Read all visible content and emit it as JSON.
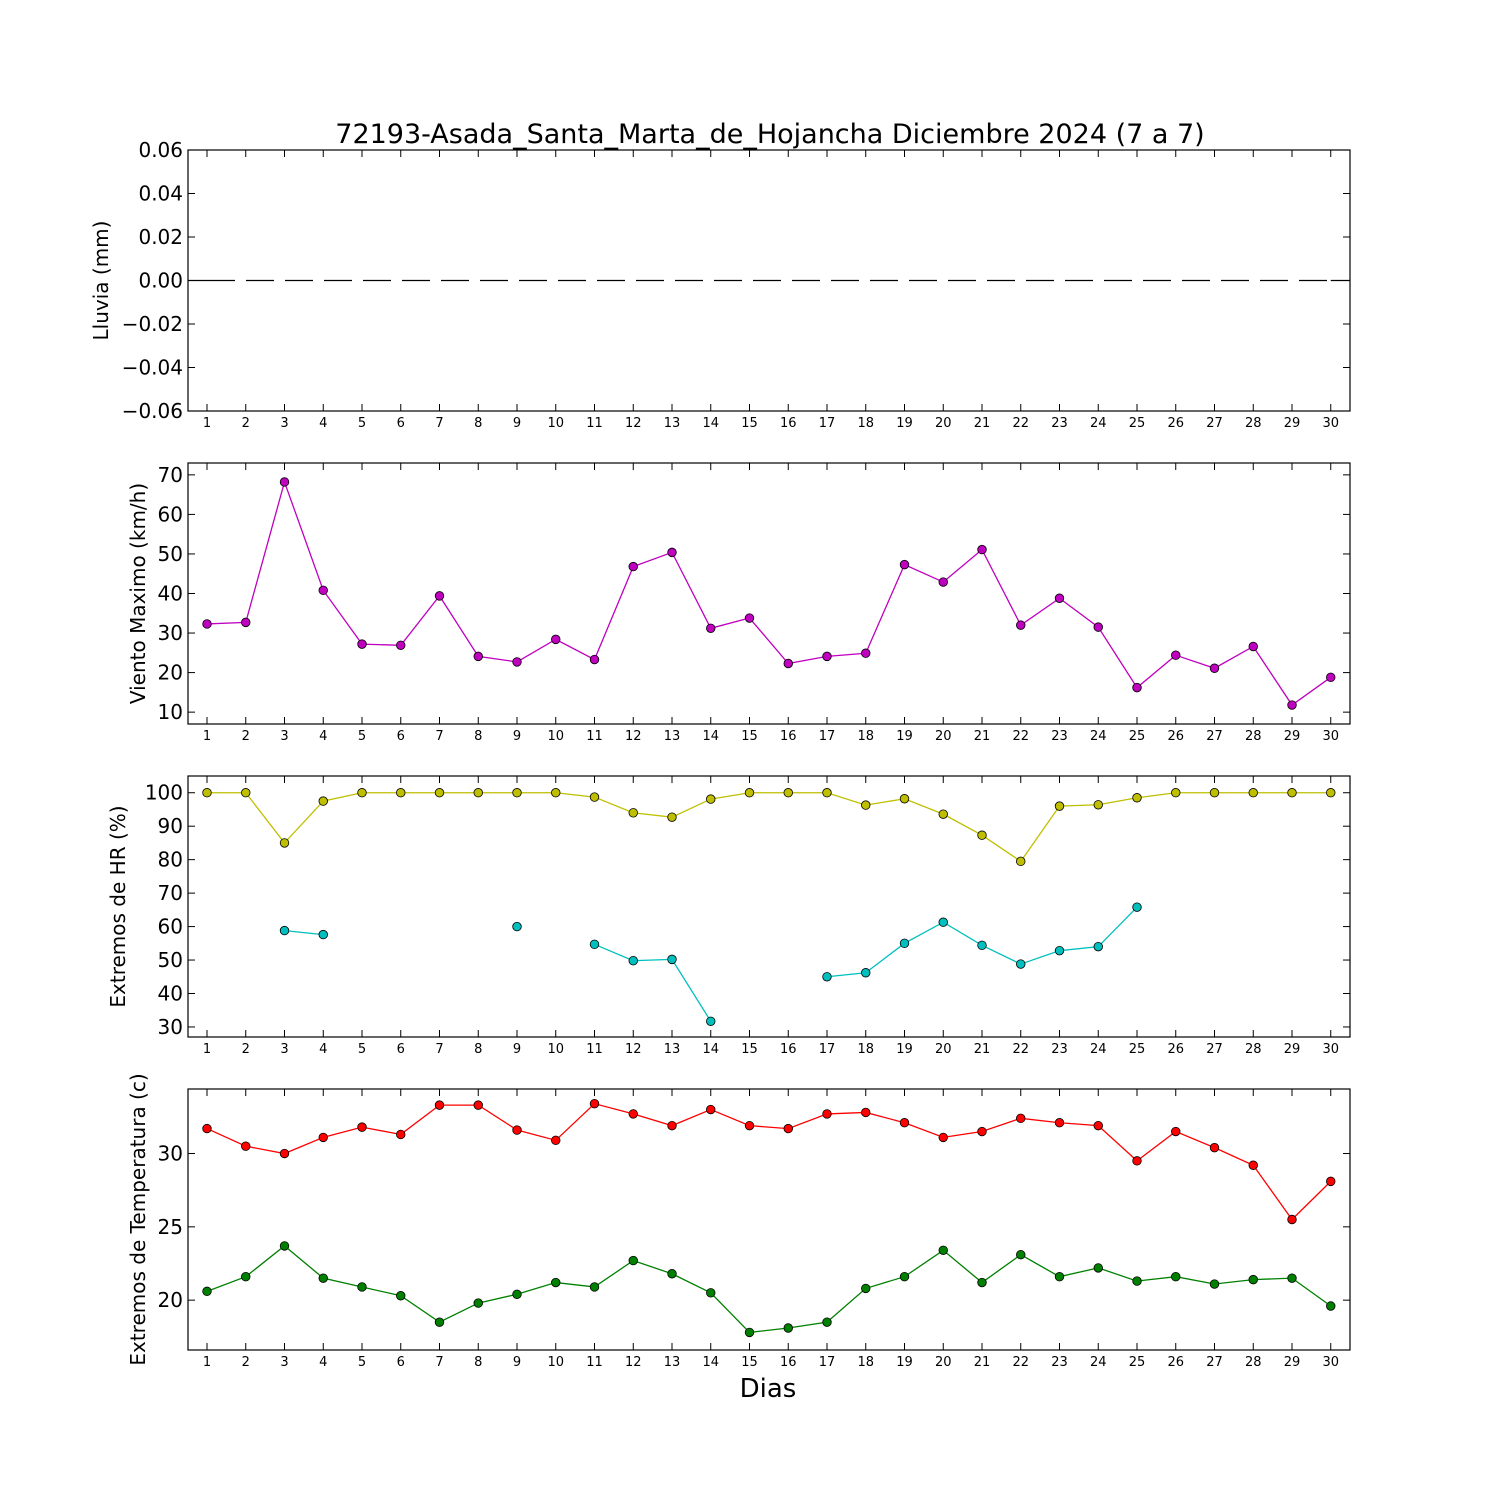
{
  "chart_data": {
    "title": "72193-Asada_Santa_Marta_de_Hojancha Diciembre 2024  (7 a 7)",
    "xlabel": "Dias",
    "days": [
      1,
      2,
      3,
      4,
      5,
      6,
      7,
      8,
      9,
      10,
      11,
      12,
      13,
      14,
      15,
      16,
      17,
      18,
      19,
      20,
      21,
      22,
      23,
      24,
      25,
      26,
      27,
      28,
      29,
      30
    ],
    "panels": [
      {
        "type": "line",
        "ylabel": "Lluvia (mm)",
        "ylim": [
          -0.06,
          0.06
        ],
        "yticks": [
          0.06,
          0.04,
          0.02,
          0.0,
          -0.02,
          -0.04,
          -0.06
        ],
        "ytick_labels": [
          "0.06",
          "0.04",
          "0.02",
          "0.00",
          "−0.02",
          "−0.04",
          "−0.06"
        ],
        "series": [
          {
            "color": "#000000",
            "style": "dashed",
            "markers": false,
            "values": [
              0,
              0,
              0,
              0,
              0,
              0,
              0,
              0,
              0,
              0,
              0,
              0,
              0,
              0,
              0,
              0,
              0,
              0,
              0,
              0,
              0,
              0,
              0,
              0,
              0,
              0,
              0,
              0,
              0,
              0
            ]
          }
        ]
      },
      {
        "type": "line",
        "ylabel": "Viento Maximo (km/h)",
        "ylim": [
          7,
          73
        ],
        "yticks": [
          70,
          60,
          50,
          40,
          30,
          20,
          10
        ],
        "ytick_labels": [
          "70",
          "60",
          "50",
          "40",
          "30",
          "20",
          "10"
        ],
        "series": [
          {
            "color": "#bf00bf",
            "style": "solid",
            "markers": true,
            "values": [
              32.3,
              32.7,
              68.2,
              40.8,
              27.2,
              26.9,
              39.4,
              24.1,
              22.7,
              28.4,
              23.3,
              46.8,
              50.4,
              31.2,
              33.8,
              22.3,
              24.1,
              24.9,
              47.3,
              42.9,
              51.1,
              32.0,
              38.8,
              31.5,
              16.2,
              24.4,
              21.1,
              26.6,
              11.8,
              18.8
            ]
          }
        ]
      },
      {
        "type": "line",
        "ylabel": "Extremos de HR (%)",
        "ylim": [
          27,
          105
        ],
        "yticks": [
          100,
          90,
          80,
          70,
          60,
          50,
          40,
          30
        ],
        "ytick_labels": [
          "100",
          "90",
          "80",
          "70",
          "60",
          "50",
          "40",
          "30"
        ],
        "series": [
          {
            "color": "#bfbf00",
            "style": "solid",
            "markers": true,
            "values": [
              100,
              100,
              85,
              97.5,
              100,
              100,
              100,
              100,
              100,
              100,
              98.7,
              94,
              92.7,
              98.1,
              100,
              100,
              100,
              96.3,
              98.2,
              93.6,
              87.3,
              79.5,
              96,
              96.4,
              98.5,
              100,
              100,
              100,
              100,
              100
            ]
          },
          {
            "color": "#00bfbf",
            "style": "solid",
            "markers": true,
            "values": [
              null,
              null,
              58.8,
              57.6,
              null,
              null,
              null,
              null,
              60,
              null,
              54.7,
              49.8,
              50.2,
              31.7,
              null,
              null,
              45,
              46.2,
              55,
              61.3,
              54.4,
              48.8,
              52.8,
              54,
              65.8,
              null,
              null,
              null,
              null,
              null
            ]
          }
        ]
      },
      {
        "type": "line",
        "ylabel": "Extremos de Temperatura (c)",
        "ylim": [
          16.6,
          34.4
        ],
        "yticks": [
          30,
          25,
          20
        ],
        "ytick_labels": [
          "30",
          "25",
          "20"
        ],
        "series": [
          {
            "color": "#ff0000",
            "style": "solid",
            "markers": true,
            "values": [
              31.7,
              30.5,
              30.0,
              31.1,
              31.8,
              31.3,
              33.3,
              33.3,
              31.6,
              30.9,
              33.4,
              32.7,
              31.9,
              33.0,
              31.9,
              31.7,
              32.7,
              32.8,
              32.1,
              31.1,
              31.5,
              32.4,
              32.1,
              31.9,
              29.5,
              31.5,
              30.4,
              29.2,
              25.5,
              28.1
            ]
          },
          {
            "color": "#008000",
            "style": "solid",
            "markers": true,
            "values": [
              20.6,
              21.6,
              23.7,
              21.5,
              20.9,
              20.3,
              18.5,
              19.8,
              20.4,
              21.2,
              20.9,
              22.7,
              21.8,
              20.5,
              17.8,
              18.1,
              18.5,
              20.8,
              21.6,
              23.4,
              21.2,
              23.1,
              21.6,
              22.2,
              21.3,
              21.6,
              21.1,
              21.4,
              21.5,
              19.6
            ]
          }
        ]
      }
    ]
  }
}
